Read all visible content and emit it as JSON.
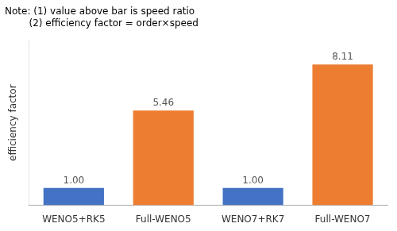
{
  "chart_data": {
    "type": "bar",
    "annotations": [
      "Note: (1) value above bar is speed ratio",
      "        (2) efficiency factor = order×speed"
    ],
    "categories": [
      "WENO5+RK5",
      "Full-WENO5",
      "WENO7+RK7",
      "Full-WENO7"
    ],
    "values": [
      1.0,
      5.46,
      1.0,
      8.11
    ],
    "value_labels": [
      "1.00",
      "5.46",
      "1.00",
      "8.11"
    ],
    "data_labels": true,
    "colors": [
      "#4472c4",
      "#ed7d31",
      "#4472c4",
      "#ed7d31"
    ],
    "ylabel": "efficiency factor",
    "ylim": [
      0,
      9.5
    ],
    "tick_labels": "x",
    "grid": false
  }
}
